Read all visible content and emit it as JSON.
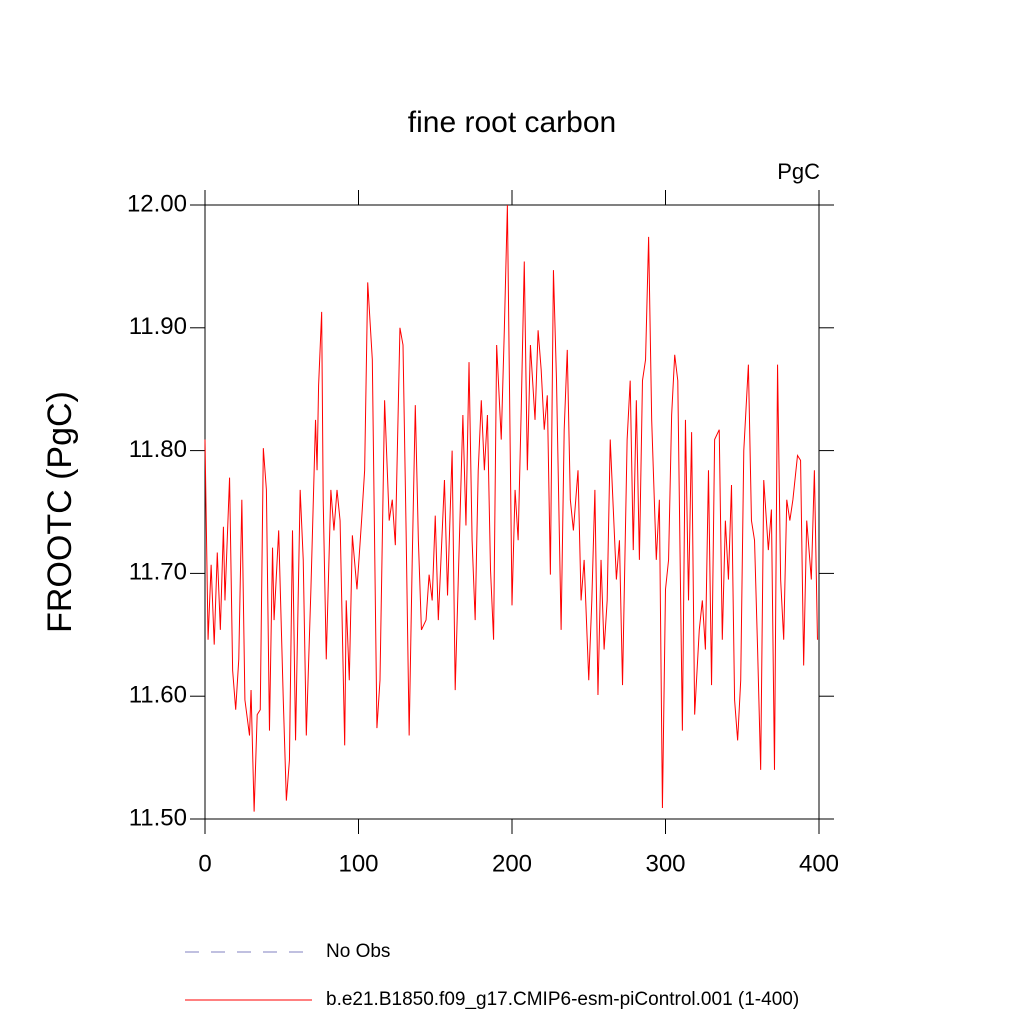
{
  "chart_data": {
    "type": "line",
    "title": "fine root carbon",
    "units_label": "PgC",
    "y_label": "FROOTC  (PgC)",
    "x": [
      0,
      2,
      4,
      6,
      8,
      10,
      12,
      13,
      16,
      18,
      20,
      22,
      24,
      26,
      29,
      30,
      32,
      34,
      36,
      38,
      40,
      42,
      44,
      45,
      48,
      51,
      53,
      55,
      57,
      59,
      62,
      64,
      66,
      69,
      72,
      73,
      74,
      76,
      77,
      79,
      82,
      84,
      86,
      88,
      91,
      92,
      94,
      96,
      99,
      102,
      104,
      106,
      109,
      112,
      114,
      117,
      120,
      122,
      124,
      127,
      129,
      131,
      133,
      135,
      137,
      139,
      141,
      144,
      146,
      148,
      150,
      152,
      154,
      156,
      158,
      161,
      163,
      165,
      168,
      170,
      172,
      174,
      176,
      178,
      180,
      182,
      184,
      186,
      188,
      190,
      193,
      195,
      197,
      200,
      202,
      204,
      206,
      208,
      210,
      212,
      215,
      217,
      219,
      221,
      223,
      225,
      227,
      229,
      232,
      234,
      236,
      238,
      240,
      243,
      245,
      247,
      250,
      252,
      254,
      256,
      258,
      260,
      262,
      264,
      266,
      268,
      270,
      272,
      275,
      277,
      279,
      281,
      283,
      285,
      287,
      289,
      291,
      294,
      296,
      298,
      300,
      302,
      304,
      306,
      308,
      311,
      313,
      315,
      317,
      319,
      322,
      324,
      326,
      328,
      330,
      332,
      335,
      337,
      339,
      341,
      343,
      345,
      347,
      349,
      351,
      354,
      356,
      358,
      360,
      362,
      364,
      367,
      369,
      371,
      373,
      375,
      377,
      379,
      381,
      383,
      386,
      388,
      390,
      392,
      395,
      397,
      399
    ],
    "series": [
      {
        "name": "b.e21.B1850.f09_g17.CMIP6-esm-piControl.001 (1-400)",
        "color": "#ff0000",
        "values": [
          11.809,
          11.646,
          11.707,
          11.642,
          11.717,
          11.654,
          11.738,
          11.678,
          11.778,
          11.621,
          11.589,
          11.63,
          11.76,
          11.597,
          11.568,
          11.605,
          11.506,
          11.585,
          11.589,
          11.802,
          11.768,
          11.572,
          11.721,
          11.662,
          11.735,
          11.597,
          11.515,
          11.548,
          11.735,
          11.564,
          11.768,
          11.711,
          11.568,
          11.687,
          11.825,
          11.784,
          11.853,
          11.913,
          11.76,
          11.63,
          11.768,
          11.735,
          11.768,
          11.743,
          11.56,
          11.678,
          11.613,
          11.731,
          11.687,
          11.743,
          11.784,
          11.937,
          11.874,
          11.574,
          11.613,
          11.841,
          11.743,
          11.76,
          11.723,
          11.9,
          11.886,
          11.735,
          11.568,
          11.711,
          11.837,
          11.727,
          11.654,
          11.662,
          11.699,
          11.678,
          11.747,
          11.662,
          11.719,
          11.776,
          11.682,
          11.8,
          11.605,
          11.695,
          11.829,
          11.739,
          11.872,
          11.727,
          11.662,
          11.784,
          11.841,
          11.784,
          11.829,
          11.703,
          11.646,
          11.886,
          11.809,
          11.898,
          12.0,
          11.674,
          11.768,
          11.727,
          11.833,
          11.954,
          11.784,
          11.886,
          11.825,
          11.898,
          11.866,
          11.817,
          11.845,
          11.699,
          11.947,
          11.857,
          11.654,
          11.817,
          11.882,
          11.76,
          11.735,
          11.784,
          11.678,
          11.711,
          11.613,
          11.678,
          11.768,
          11.601,
          11.711,
          11.638,
          11.678,
          11.809,
          11.752,
          11.695,
          11.727,
          11.609,
          11.809,
          11.857,
          11.719,
          11.841,
          11.711,
          11.857,
          11.874,
          11.974,
          11.825,
          11.711,
          11.76,
          11.509,
          11.687,
          11.711,
          11.829,
          11.878,
          11.857,
          11.572,
          11.825,
          11.678,
          11.815,
          11.585,
          11.654,
          11.678,
          11.638,
          11.784,
          11.609,
          11.809,
          11.817,
          11.646,
          11.743,
          11.695,
          11.772,
          11.597,
          11.564,
          11.613,
          11.8,
          11.87,
          11.743,
          11.727,
          11.638,
          11.54,
          11.776,
          11.719,
          11.752,
          11.54,
          11.87,
          11.695,
          11.646,
          11.76,
          11.743,
          11.76,
          11.796,
          11.792,
          11.625,
          11.743,
          11.695,
          11.784,
          11.646
        ]
      }
    ],
    "legend_entries": [
      {
        "name": "No Obs",
        "color": "#8080c0",
        "dash": true
      }
    ],
    "xlim": [
      0,
      400
    ],
    "xticks": [
      0,
      100,
      200,
      300,
      400
    ],
    "ylim": [
      11.5,
      12.0
    ],
    "yticks": [
      {
        "value": 11.5,
        "label": "11.50"
      },
      {
        "value": 11.6,
        "label": "11.60"
      },
      {
        "value": 11.7,
        "label": "11.70"
      },
      {
        "value": 11.8,
        "label": "11.80"
      },
      {
        "value": 11.9,
        "label": "11.90"
      },
      {
        "value": 12.0,
        "label": "12.00"
      }
    ]
  }
}
